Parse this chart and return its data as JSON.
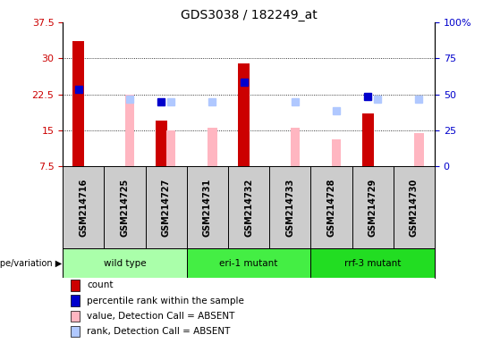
{
  "title": "GDS3038 / 182249_at",
  "samples": [
    "GSM214716",
    "GSM214725",
    "GSM214727",
    "GSM214731",
    "GSM214732",
    "GSM214733",
    "GSM214728",
    "GSM214729",
    "GSM214730"
  ],
  "groups": [
    {
      "name": "wild type",
      "indices": [
        0,
        1,
        2
      ],
      "color": "#AAFFAA"
    },
    {
      "name": "eri-1 mutant",
      "indices": [
        3,
        4,
        5
      ],
      "color": "#44EE44"
    },
    {
      "name": "rrf-3 mutant",
      "indices": [
        6,
        7,
        8
      ],
      "color": "#22DD22"
    }
  ],
  "count_values": [
    33.5,
    null,
    17.0,
    null,
    29.0,
    null,
    null,
    18.5,
    null
  ],
  "rank_values": [
    23.5,
    null,
    21.0,
    null,
    25.0,
    null,
    null,
    22.0,
    null
  ],
  "absent_value_values": [
    null,
    22.5,
    15.0,
    15.5,
    null,
    15.5,
    13.2,
    null,
    14.5
  ],
  "absent_rank_values": [
    null,
    21.5,
    21.0,
    21.0,
    null,
    21.0,
    19.0,
    21.5,
    21.5
  ],
  "ylim_left": [
    7.5,
    37.5
  ],
  "ylim_right": [
    0,
    100
  ],
  "yticks_left": [
    7.5,
    15.0,
    22.5,
    30.0,
    37.5
  ],
  "yticks_right": [
    0,
    25,
    50,
    75,
    100
  ],
  "ytick_labels_left": [
    "7.5",
    "15",
    "22.5",
    "30",
    "37.5"
  ],
  "ytick_labels_right": [
    "0",
    "25",
    "50",
    "75",
    "100%"
  ],
  "color_count": "#CC0000",
  "color_rank": "#0000CC",
  "color_absent_value": "#FFB6C1",
  "color_absent_rank": "#B0C8FF",
  "bar_width": 0.28,
  "absent_bar_width": 0.22,
  "marker_size": 6,
  "bg_plot": "#FFFFFF",
  "bg_sample": "#CCCCCC",
  "legend_items": [
    {
      "label": "count",
      "color": "#CC0000"
    },
    {
      "label": "percentile rank within the sample",
      "color": "#0000CC"
    },
    {
      "label": "value, Detection Call = ABSENT",
      "color": "#FFB6C1"
    },
    {
      "label": "rank, Detection Call = ABSENT",
      "color": "#B0C8FF"
    }
  ]
}
